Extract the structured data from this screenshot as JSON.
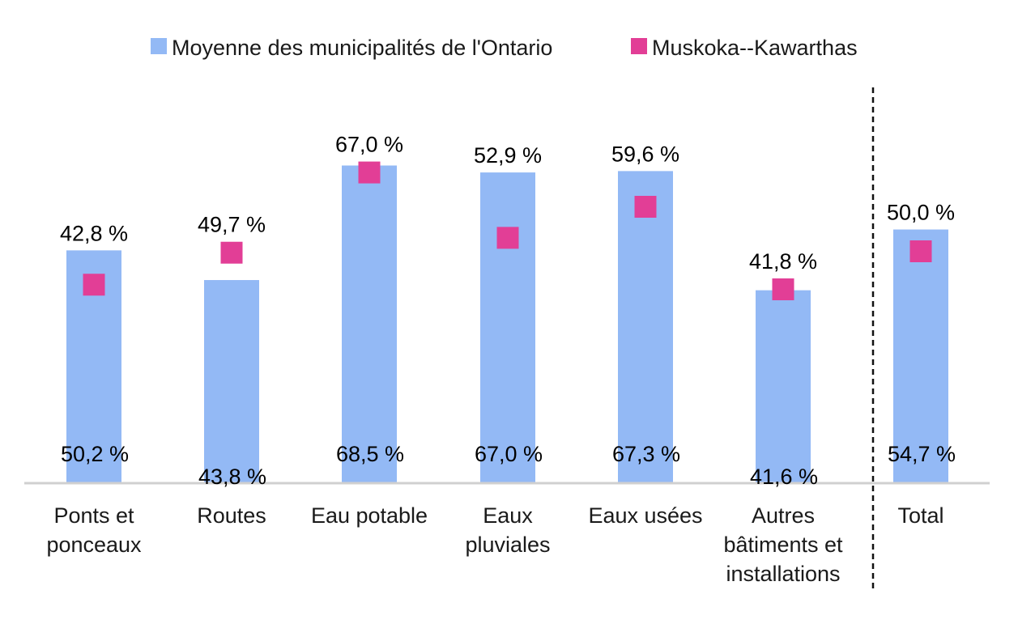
{
  "chart_data": {
    "type": "bar",
    "categories": [
      [
        "Ponts et",
        "ponceaux"
      ],
      [
        "Routes"
      ],
      [
        "Eau potable"
      ],
      [
        "Eaux",
        "pluviales"
      ],
      [
        "Eaux usées"
      ],
      [
        "Autres",
        "bâtiments et",
        "installations"
      ],
      [
        "Total"
      ]
    ],
    "series": [
      {
        "name": "Moyenne des municipalités de l'Ontario",
        "mark": "bar",
        "color": "#93b9f5",
        "values": [
          50.2,
          43.8,
          68.5,
          67.0,
          67.3,
          41.6,
          54.7
        ],
        "labels": [
          "50,2 %",
          "43,8 %",
          "68,5 %",
          "67,0 %",
          "67,3 %",
          "41,6 %",
          "54,7 %"
        ]
      },
      {
        "name": "Muskoka--Kawarthas",
        "mark": "square",
        "color": "#e23e96",
        "values": [
          42.8,
          49.7,
          67.0,
          52.9,
          59.6,
          41.8,
          50.0
        ],
        "labels": [
          "42,8 %",
          "49,7 %",
          "67,0 %",
          "52,9 %",
          "59,6 %",
          "41,8 %",
          "50,0 %"
        ]
      }
    ],
    "ylim": [
      0,
      80
    ],
    "grid": false,
    "legend_position": "top",
    "separator_before_last": true,
    "axis_color": "#d0d0d0"
  }
}
